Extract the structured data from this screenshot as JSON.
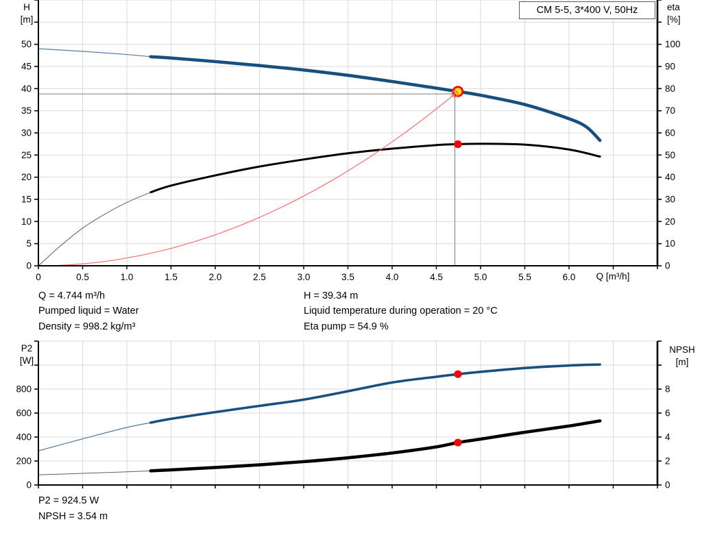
{
  "title_box": {
    "label": "CM 5-5, 3*400 V, 50Hz"
  },
  "axis_labels": {
    "h": [
      "H",
      "[m]"
    ],
    "eta": [
      "eta",
      "[%]"
    ],
    "p2": [
      "P2",
      "[W]"
    ],
    "npsh": [
      "NPSH",
      "[m]"
    ],
    "q": "Q [m³/h]"
  },
  "info_top": {
    "col1": [
      "Q = 4.744 m³/h",
      "Pumped liquid = Water",
      "Density = 998.2 kg/m³"
    ],
    "col2": [
      "H = 39.34 m",
      "Liquid temperature during operation = 20 °C",
      "Eta pump = 54.9 %"
    ]
  },
  "info_bottom": [
    "P2 = 924.5 W",
    "NPSH = 3.54 m"
  ],
  "colors": {
    "curve_blue": "#17507F",
    "thin_blue": "#4F7BA5",
    "curve_black": "#000000",
    "thin_gray": "#5E5E5E",
    "system_red": "#FF6B6B",
    "marker_red": "#FF0000",
    "duty_yellow": "#FFE600",
    "grid": "#D9D9D9",
    "axis": "#000000",
    "crosshair": "#7A7A7A"
  },
  "chart_data": [
    {
      "type": "line",
      "title": "CM 5-5, 3*400 V, 50Hz",
      "x_axis": {
        "label": "Q [m³/h]",
        "min": 0,
        "max": 7,
        "grid_step": 0.5,
        "label_at": 6.5,
        "ticks": [
          {
            "v": 0,
            "t": "0"
          },
          {
            "v": 0.5,
            "t": "0.5"
          },
          {
            "v": 1,
            "t": "1.0"
          },
          {
            "v": 1.5,
            "t": "1.5"
          },
          {
            "v": 2,
            "t": "2.0"
          },
          {
            "v": 2.5,
            "t": "2.5"
          },
          {
            "v": 3,
            "t": "3.0"
          },
          {
            "v": 3.5,
            "t": "3.5"
          },
          {
            "v": 4,
            "t": "4.0"
          },
          {
            "v": 4.5,
            "t": "4.5"
          },
          {
            "v": 5,
            "t": "5.0"
          },
          {
            "v": 5.5,
            "t": "5.5"
          },
          {
            "v": 6,
            "t": "6.0"
          }
        ]
      },
      "y_left": {
        "label": "H [m]",
        "min": 0,
        "max": 60,
        "grid_step": 5,
        "ticks": [
          {
            "v": 0,
            "t": "0"
          },
          {
            "v": 5,
            "t": "5"
          },
          {
            "v": 10,
            "t": "10"
          },
          {
            "v": 15,
            "t": "15"
          },
          {
            "v": 20,
            "t": "20"
          },
          {
            "v": 25,
            "t": "25"
          },
          {
            "v": 30,
            "t": "30"
          },
          {
            "v": 35,
            "t": "35"
          },
          {
            "v": 40,
            "t": "40"
          },
          {
            "v": 45,
            "t": "45"
          },
          {
            "v": 50,
            "t": "50"
          }
        ]
      },
      "y_right": {
        "label": "eta [%]",
        "min": 0,
        "max": 120,
        "grid_step": 10,
        "ticks": [
          {
            "v": 0,
            "t": "0"
          },
          {
            "v": 10,
            "t": "10"
          },
          {
            "v": 20,
            "t": "20"
          },
          {
            "v": 30,
            "t": "30"
          },
          {
            "v": 40,
            "t": "40"
          },
          {
            "v": 50,
            "t": "50"
          },
          {
            "v": 60,
            "t": "60"
          },
          {
            "v": 70,
            "t": "70"
          },
          {
            "v": 80,
            "t": "80"
          },
          {
            "v": 90,
            "t": "90"
          },
          {
            "v": 100,
            "t": "100"
          }
        ]
      },
      "series": [
        {
          "name": "qh-curve",
          "axis": "left",
          "color": "#17507F",
          "thin_color": "#4F7BA5",
          "width": 4.6,
          "thin_width": 1.2,
          "thin_until": 1.27,
          "points": [
            [
              0,
              49.0
            ],
            [
              0.5,
              48.4
            ],
            [
              1.0,
              47.7
            ],
            [
              1.27,
              47.2
            ],
            [
              1.5,
              46.9
            ],
            [
              2.0,
              46.1
            ],
            [
              2.5,
              45.2
            ],
            [
              3.0,
              44.2
            ],
            [
              3.5,
              43.0
            ],
            [
              4.0,
              41.6
            ],
            [
              4.5,
              40.1
            ],
            [
              4.744,
              39.34
            ],
            [
              5.0,
              38.5
            ],
            [
              5.5,
              36.4
            ],
            [
              6.0,
              33.2
            ],
            [
              6.2,
              31.3
            ],
            [
              6.35,
              28.3
            ]
          ]
        },
        {
          "name": "eta-curve",
          "axis": "right",
          "color": "#000000",
          "thin_color": "#5E5E5E",
          "width": 3.0,
          "thin_width": 1.0,
          "thin_until": 1.27,
          "points": [
            [
              0,
              0
            ],
            [
              0.25,
              9
            ],
            [
              0.5,
              17
            ],
            [
              0.75,
              23.3
            ],
            [
              1.0,
              28.6
            ],
            [
              1.27,
              33.2
            ],
            [
              1.5,
              36.2
            ],
            [
              2.0,
              40.8
            ],
            [
              2.5,
              44.8
            ],
            [
              3.0,
              48.0
            ],
            [
              3.5,
              50.8
            ],
            [
              4.0,
              52.9
            ],
            [
              4.5,
              54.5
            ],
            [
              4.744,
              54.9
            ],
            [
              5.0,
              55.1
            ],
            [
              5.5,
              54.7
            ],
            [
              6.0,
              52.5
            ],
            [
              6.35,
              49.3
            ]
          ]
        },
        {
          "name": "system-curve",
          "axis": "left",
          "color": "#FF6B6B",
          "width": 1.2,
          "overlay": true,
          "points": [
            [
              0,
              0
            ],
            [
              0.25,
              0.11
            ],
            [
              0.5,
              0.44
            ],
            [
              0.75,
              0.98
            ],
            [
              1.0,
              1.75
            ],
            [
              1.25,
              2.73
            ],
            [
              1.5,
              3.93
            ],
            [
              1.75,
              5.36
            ],
            [
              2.0,
              6.99
            ],
            [
              2.25,
              8.85
            ],
            [
              2.5,
              10.93
            ],
            [
              2.75,
              13.22
            ],
            [
              3.0,
              15.74
            ],
            [
              3.25,
              18.47
            ],
            [
              3.5,
              21.42
            ],
            [
              3.75,
              24.59
            ],
            [
              4.0,
              27.98
            ],
            [
              4.25,
              31.58
            ],
            [
              4.5,
              35.41
            ],
            [
              4.744,
              39.34
            ]
          ]
        }
      ],
      "crosshair": {
        "x": 4.71,
        "y": 38.8
      },
      "markers": [
        {
          "name": "duty-point-marker",
          "x": 4.744,
          "y": 39.34,
          "axis": "left",
          "style": "yellow-red"
        },
        {
          "name": "requested-point-marker",
          "x": 4.71,
          "y": 38.8,
          "axis": "left",
          "style": "red-open"
        },
        {
          "name": "eta-point-marker",
          "x": 4.744,
          "y": 54.9,
          "axis": "right",
          "style": "red"
        }
      ]
    },
    {
      "type": "line",
      "x_axis": {
        "label": "",
        "min": 0,
        "max": 7,
        "grid_step": 0.5,
        "ticks": []
      },
      "y_left": {
        "label": "P2 [W]",
        "min": 0,
        "max": 1200,
        "grid_step": 200,
        "ticks": [
          {
            "v": 0,
            "t": "0"
          },
          {
            "v": 200,
            "t": "200"
          },
          {
            "v": 400,
            "t": "400"
          },
          {
            "v": 600,
            "t": "600"
          },
          {
            "v": 800,
            "t": "800"
          }
        ]
      },
      "y_right": {
        "label": "NPSH [m]",
        "min": 0,
        "max": 12,
        "grid_step": 2,
        "ticks": [
          {
            "v": 0,
            "t": "0"
          },
          {
            "v": 2,
            "t": "2"
          },
          {
            "v": 4,
            "t": "4"
          },
          {
            "v": 6,
            "t": "6"
          },
          {
            "v": 8,
            "t": "8"
          }
        ]
      },
      "series": [
        {
          "name": "p2-curve",
          "axis": "left",
          "color": "#17507F",
          "thin_color": "#4F7BA5",
          "width": 3.6,
          "thin_width": 1.2,
          "thin_until": 1.27,
          "points": [
            [
              0,
              285
            ],
            [
              0.5,
              385
            ],
            [
              1.0,
              480
            ],
            [
              1.27,
              520
            ],
            [
              1.5,
              552
            ],
            [
              2.0,
              608
            ],
            [
              2.5,
              660
            ],
            [
              3.0,
              712
            ],
            [
              3.5,
              782
            ],
            [
              4.0,
              855
            ],
            [
              4.5,
              903
            ],
            [
              4.744,
              924.5
            ],
            [
              5.0,
              944
            ],
            [
              5.5,
              976
            ],
            [
              6.0,
              997
            ],
            [
              6.35,
              1005
            ]
          ]
        },
        {
          "name": "npsh-curve",
          "axis": "right",
          "color": "#000000",
          "thin_color": "#5E5E5E",
          "width": 4.6,
          "thin_width": 1.0,
          "thin_until": 1.27,
          "points": [
            [
              0,
              0.85
            ],
            [
              0.5,
              0.97
            ],
            [
              1.0,
              1.1
            ],
            [
              1.27,
              1.18
            ],
            [
              1.5,
              1.26
            ],
            [
              2.0,
              1.46
            ],
            [
              2.5,
              1.68
            ],
            [
              3.0,
              1.95
            ],
            [
              3.5,
              2.27
            ],
            [
              4.0,
              2.67
            ],
            [
              4.5,
              3.18
            ],
            [
              4.744,
              3.54
            ],
            [
              5.0,
              3.83
            ],
            [
              5.5,
              4.4
            ],
            [
              6.0,
              4.92
            ],
            [
              6.35,
              5.35
            ]
          ]
        }
      ],
      "markers": [
        {
          "name": "p2-point-marker",
          "x": 4.744,
          "y": 924.5,
          "axis": "left",
          "style": "red"
        },
        {
          "name": "npsh-point-marker",
          "x": 4.744,
          "y": 3.54,
          "axis": "right",
          "style": "red"
        }
      ]
    }
  ]
}
